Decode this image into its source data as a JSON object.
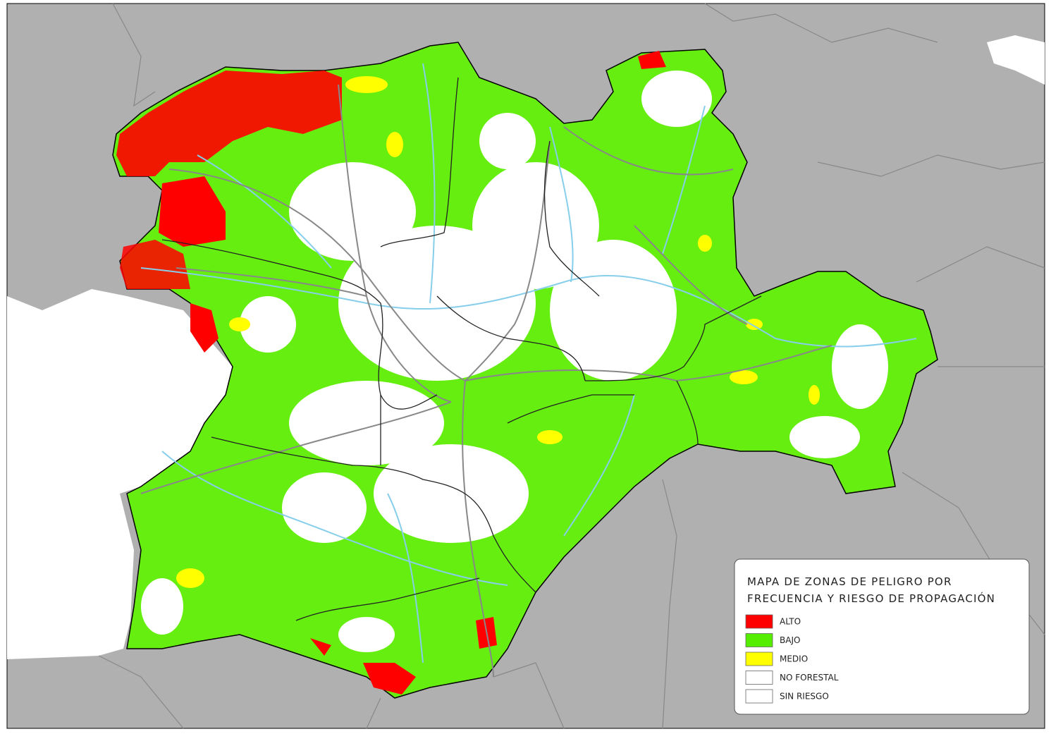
{
  "legend": {
    "title": [
      "MAPA DE ZONAS DE PELIGRO POR",
      "FRECUENCIA Y RIESGO DE PROPAGACIÓN"
    ],
    "items": [
      {
        "label": "ALTO",
        "color": "#ff0000"
      },
      {
        "label": "BAJO",
        "color": "#55ee00"
      },
      {
        "label": "MEDIO",
        "color": "#ffff00"
      },
      {
        "label": "NO FORESTAL",
        "color": "#ffffff"
      },
      {
        "label": "SIN RIESGO",
        "color": "#ffffff"
      }
    ]
  }
}
